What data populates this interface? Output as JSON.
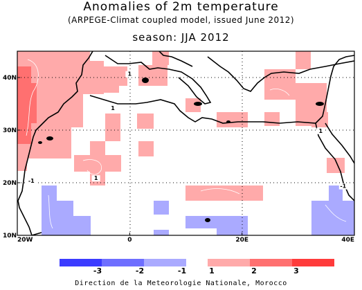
{
  "title": "Anomalies of 2m temperature",
  "subtitle": "(ARPEGE-Climat coupled model, issued June 2012)",
  "season": "season: JJA 2012",
  "footer": "Direction de la Meteorologie Nationale, Morocco",
  "map": {
    "lon_range": [
      -20,
      40
    ],
    "lat_range": [
      10,
      45
    ],
    "x_ticks": [
      {
        "lon": -20,
        "label": "20W"
      },
      {
        "lon": 0,
        "label": "0"
      },
      {
        "lon": 20,
        "label": "20E"
      },
      {
        "lon": 40,
        "label": "40E"
      }
    ],
    "y_ticks": [
      {
        "lat": 10,
        "label": "10N"
      },
      {
        "lat": 20,
        "label": "20N"
      },
      {
        "lat": 30,
        "label": "30N"
      },
      {
        "lat": 40,
        "label": "40N"
      }
    ],
    "grid": "dotted",
    "contour_labels": [
      {
        "text": "1",
        "lon": 0,
        "lat": 40.3
      },
      {
        "text": "1",
        "lon": -3,
        "lat": 33.8
      },
      {
        "text": "1",
        "lon": -6,
        "lat": 20.5
      },
      {
        "text": "-1",
        "lon": -17.5,
        "lat": 20
      },
      {
        "text": "1",
        "lon": 34,
        "lat": 29.5
      },
      {
        "text": "-1",
        "lon": 38,
        "lat": 19
      }
    ]
  },
  "colors": {
    "warm_1": "#ffaaaa",
    "warm_2": "#ff7070",
    "cold_1": "#aaaaff",
    "cold_2": "#6e6eff",
    "coast": "#000000"
  },
  "legend": {
    "labels": [
      "-3",
      "-2",
      "-1",
      "1",
      "2",
      "3"
    ],
    "colors": [
      "#3b3bff",
      "#6e6eff",
      "#aaaaff",
      "#ffaaaa",
      "#ff7070",
      "#ff3b3b"
    ]
  }
}
